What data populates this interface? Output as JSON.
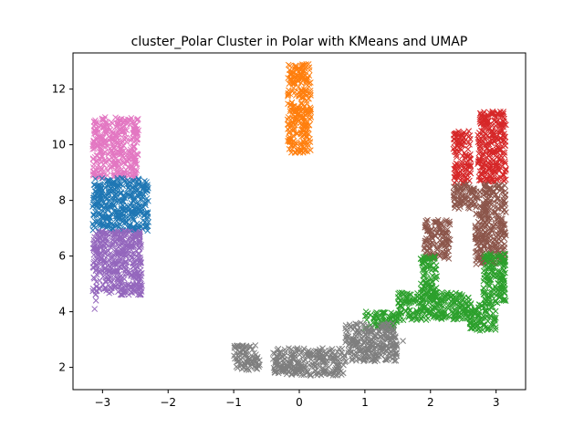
{
  "chart_data": {
    "type": "scatter",
    "title": "cluster_Polar Cluster in Polar with KMeans and UMAP",
    "xlabel": "",
    "ylabel": "",
    "xlim": [
      -3.45,
      3.45
    ],
    "ylim": [
      1.2,
      13.3
    ],
    "xticks": [
      -3,
      -2,
      -1,
      0,
      1,
      2,
      3
    ],
    "xtick_labels": [
      "−3",
      "−2",
      "−1",
      "0",
      "1",
      "2",
      "3"
    ],
    "yticks": [
      2,
      4,
      6,
      8,
      10,
      12
    ],
    "ytick_labels": [
      "2",
      "4",
      "6",
      "8",
      "10",
      "12"
    ],
    "grid": false,
    "legend": "none",
    "marker": "x",
    "clusters": [
      {
        "color": "#ff7f0e",
        "regions": [
          {
            "x": [
              -0.18,
              0.18
            ],
            "y": [
              9.7,
              12.9
            ]
          }
        ]
      },
      {
        "color": "#e377c2",
        "regions": [
          {
            "x": [
              -3.15,
              -2.45
            ],
            "y": [
              8.8,
              11.0
            ]
          }
        ]
      },
      {
        "color": "#1f77b4",
        "regions": [
          {
            "x": [
              -3.15,
              -2.3
            ],
            "y": [
              6.9,
              8.8
            ]
          }
        ]
      },
      {
        "color": "#9467bd",
        "regions": [
          {
            "x": [
              -3.15,
              -2.4
            ],
            "y": [
              4.6,
              6.9
            ]
          }
        ]
      },
      {
        "color": "#d62728",
        "regions": [
          {
            "x": [
              2.35,
              2.62
            ],
            "y": [
              8.6,
              10.5
            ]
          },
          {
            "x": [
              2.72,
              3.15
            ],
            "y": [
              8.6,
              11.2
            ]
          }
        ]
      },
      {
        "color": "#8c564b",
        "regions": [
          {
            "x": [
              2.35,
              3.15
            ],
            "y": [
              7.7,
              8.6
            ]
          },
          {
            "x": [
              2.68,
              3.15
            ],
            "y": [
              5.7,
              7.7
            ]
          },
          {
            "x": [
              1.9,
              2.3
            ],
            "y": [
              5.9,
              7.3
            ]
          }
        ]
      },
      {
        "color": "#2ca02c",
        "regions": [
          {
            "x": [
              1.0,
              1.5
            ],
            "y": [
              3.4,
              4.0
            ]
          },
          {
            "x": [
              1.5,
              2.6
            ],
            "y": [
              3.7,
              4.7
            ]
          },
          {
            "x": [
              2.6,
              3.0
            ],
            "y": [
              3.3,
              4.3
            ]
          },
          {
            "x": [
              2.8,
              3.15
            ],
            "y": [
              4.3,
              6.1
            ]
          },
          {
            "x": [
              1.85,
              2.1
            ],
            "y": [
              4.5,
              6.0
            ]
          }
        ]
      },
      {
        "color": "#7f7f7f",
        "regions": [
          {
            "x": [
              -1.0,
              -0.6
            ],
            "y": [
              1.9,
              2.8
            ]
          },
          {
            "x": [
              -0.4,
              0.7
            ],
            "y": [
              1.7,
              2.7
            ]
          },
          {
            "x": [
              0.7,
              1.5
            ],
            "y": [
              2.2,
              3.6
            ]
          }
        ]
      }
    ],
    "outliers": [
      {
        "x": -3.1,
        "y": 4.4,
        "color": "#9467bd"
      },
      {
        "x": -3.12,
        "y": 4.1,
        "color": "#9467bd"
      },
      {
        "x": 3.12,
        "y": 4.4,
        "color": "#2ca02c"
      },
      {
        "x": 3.1,
        "y": 5.2,
        "color": "#2ca02c"
      },
      {
        "x": 1.58,
        "y": 2.95,
        "color": "#7f7f7f"
      }
    ]
  }
}
